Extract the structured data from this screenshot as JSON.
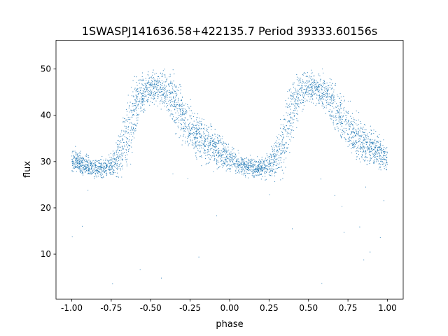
{
  "chart_data": {
    "type": "scatter",
    "title": "1SWASPJ141636.58+422135.7 Period 39333.60156s",
    "xlabel": "phase",
    "ylabel": "flux",
    "xlim": [
      -1.1,
      1.1
    ],
    "ylim": [
      0.3,
      56.2
    ],
    "xticks": [
      "-1.00",
      "-0.75",
      "-0.50",
      "-0.25",
      "0.00",
      "0.25",
      "0.50",
      "0.75",
      "1.00"
    ],
    "xtick_values": [
      -1,
      -0.75,
      -0.5,
      -0.25,
      0,
      0.25,
      0.5,
      0.75,
      1
    ],
    "yticks": [
      "10",
      "20",
      "30",
      "40",
      "50"
    ],
    "ytick_values": [
      10,
      20,
      30,
      40,
      50
    ],
    "grid": false,
    "marker_color": "#1f77b4",
    "series_description_binned": {
      "phase": [
        0.0,
        0.05,
        0.1,
        0.15,
        0.2,
        0.25,
        0.3,
        0.35,
        0.4,
        0.45,
        0.5,
        0.55,
        0.6,
        0.65,
        0.7,
        0.75,
        0.8,
        0.85,
        0.9,
        0.95,
        1.0
      ],
      "median_flux": [
        30.5,
        29.5,
        28.8,
        28.6,
        28.7,
        29.3,
        31,
        35.5,
        41.5,
        45,
        46,
        46,
        45,
        43,
        40,
        37.5,
        35.5,
        34,
        33,
        31.8,
        30.5
      ],
      "spread": [
        2,
        1.8,
        1.5,
        1.5,
        1.5,
        2,
        3.5,
        5,
        5,
        3,
        2.5,
        2.5,
        3,
        4,
        4,
        4,
        3.5,
        3,
        3,
        2.5,
        2
      ]
    }
  }
}
